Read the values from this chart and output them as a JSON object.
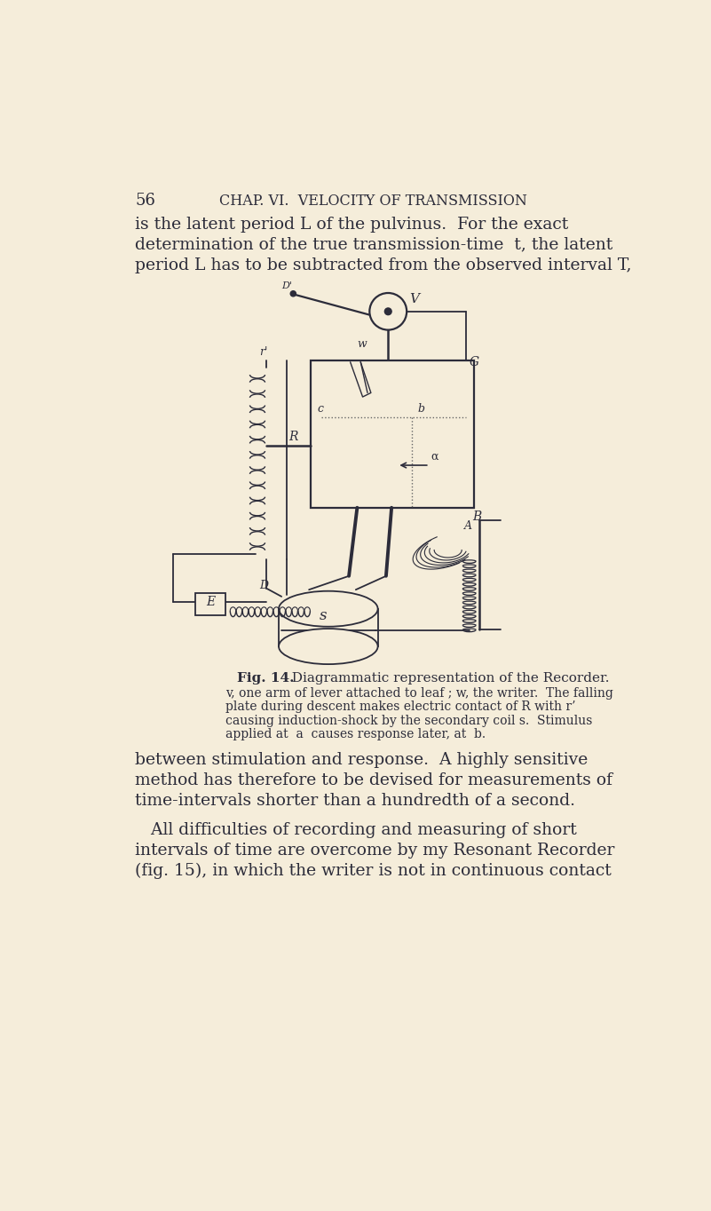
{
  "bg_color": "#f5edda",
  "dark_color": "#2c2c3a",
  "page_number": "56",
  "chapter_header": "CHAP. VI.  VELOCITY OF TRANSMISSION",
  "para1_lines": [
    "is the latent period L of the pulvinus.  For the exact",
    "determination of the true transmission-time  t, the latent",
    "period L has to be subtracted from the observed interval T,"
  ],
  "fig_caption_bold": "Fig. 14.",
  "fig_caption_main": "  Diagrammatic representation of the Recorder.",
  "fig_caption_lines": [
    "v, one arm of lever attached to leaf ; w, the writer.  The falling",
    "plate during descent makes electric contact of R with r’",
    "causing induction-shock by the secondary coil s.  Stimulus",
    "applied at  a  causes response later, at  b."
  ],
  "para2_lines": [
    "between stimulation and response.  A highly sensitive",
    "method has therefore to be devised for measurements of",
    "time-intervals shorter than a hundredth of a second."
  ],
  "para3_lines": [
    "   All difficulties of recording and measuring of short",
    "intervals of time are overcome by my Resonant Recorder",
    "(fig. 15), in which the writer is not in continuous contact"
  ]
}
